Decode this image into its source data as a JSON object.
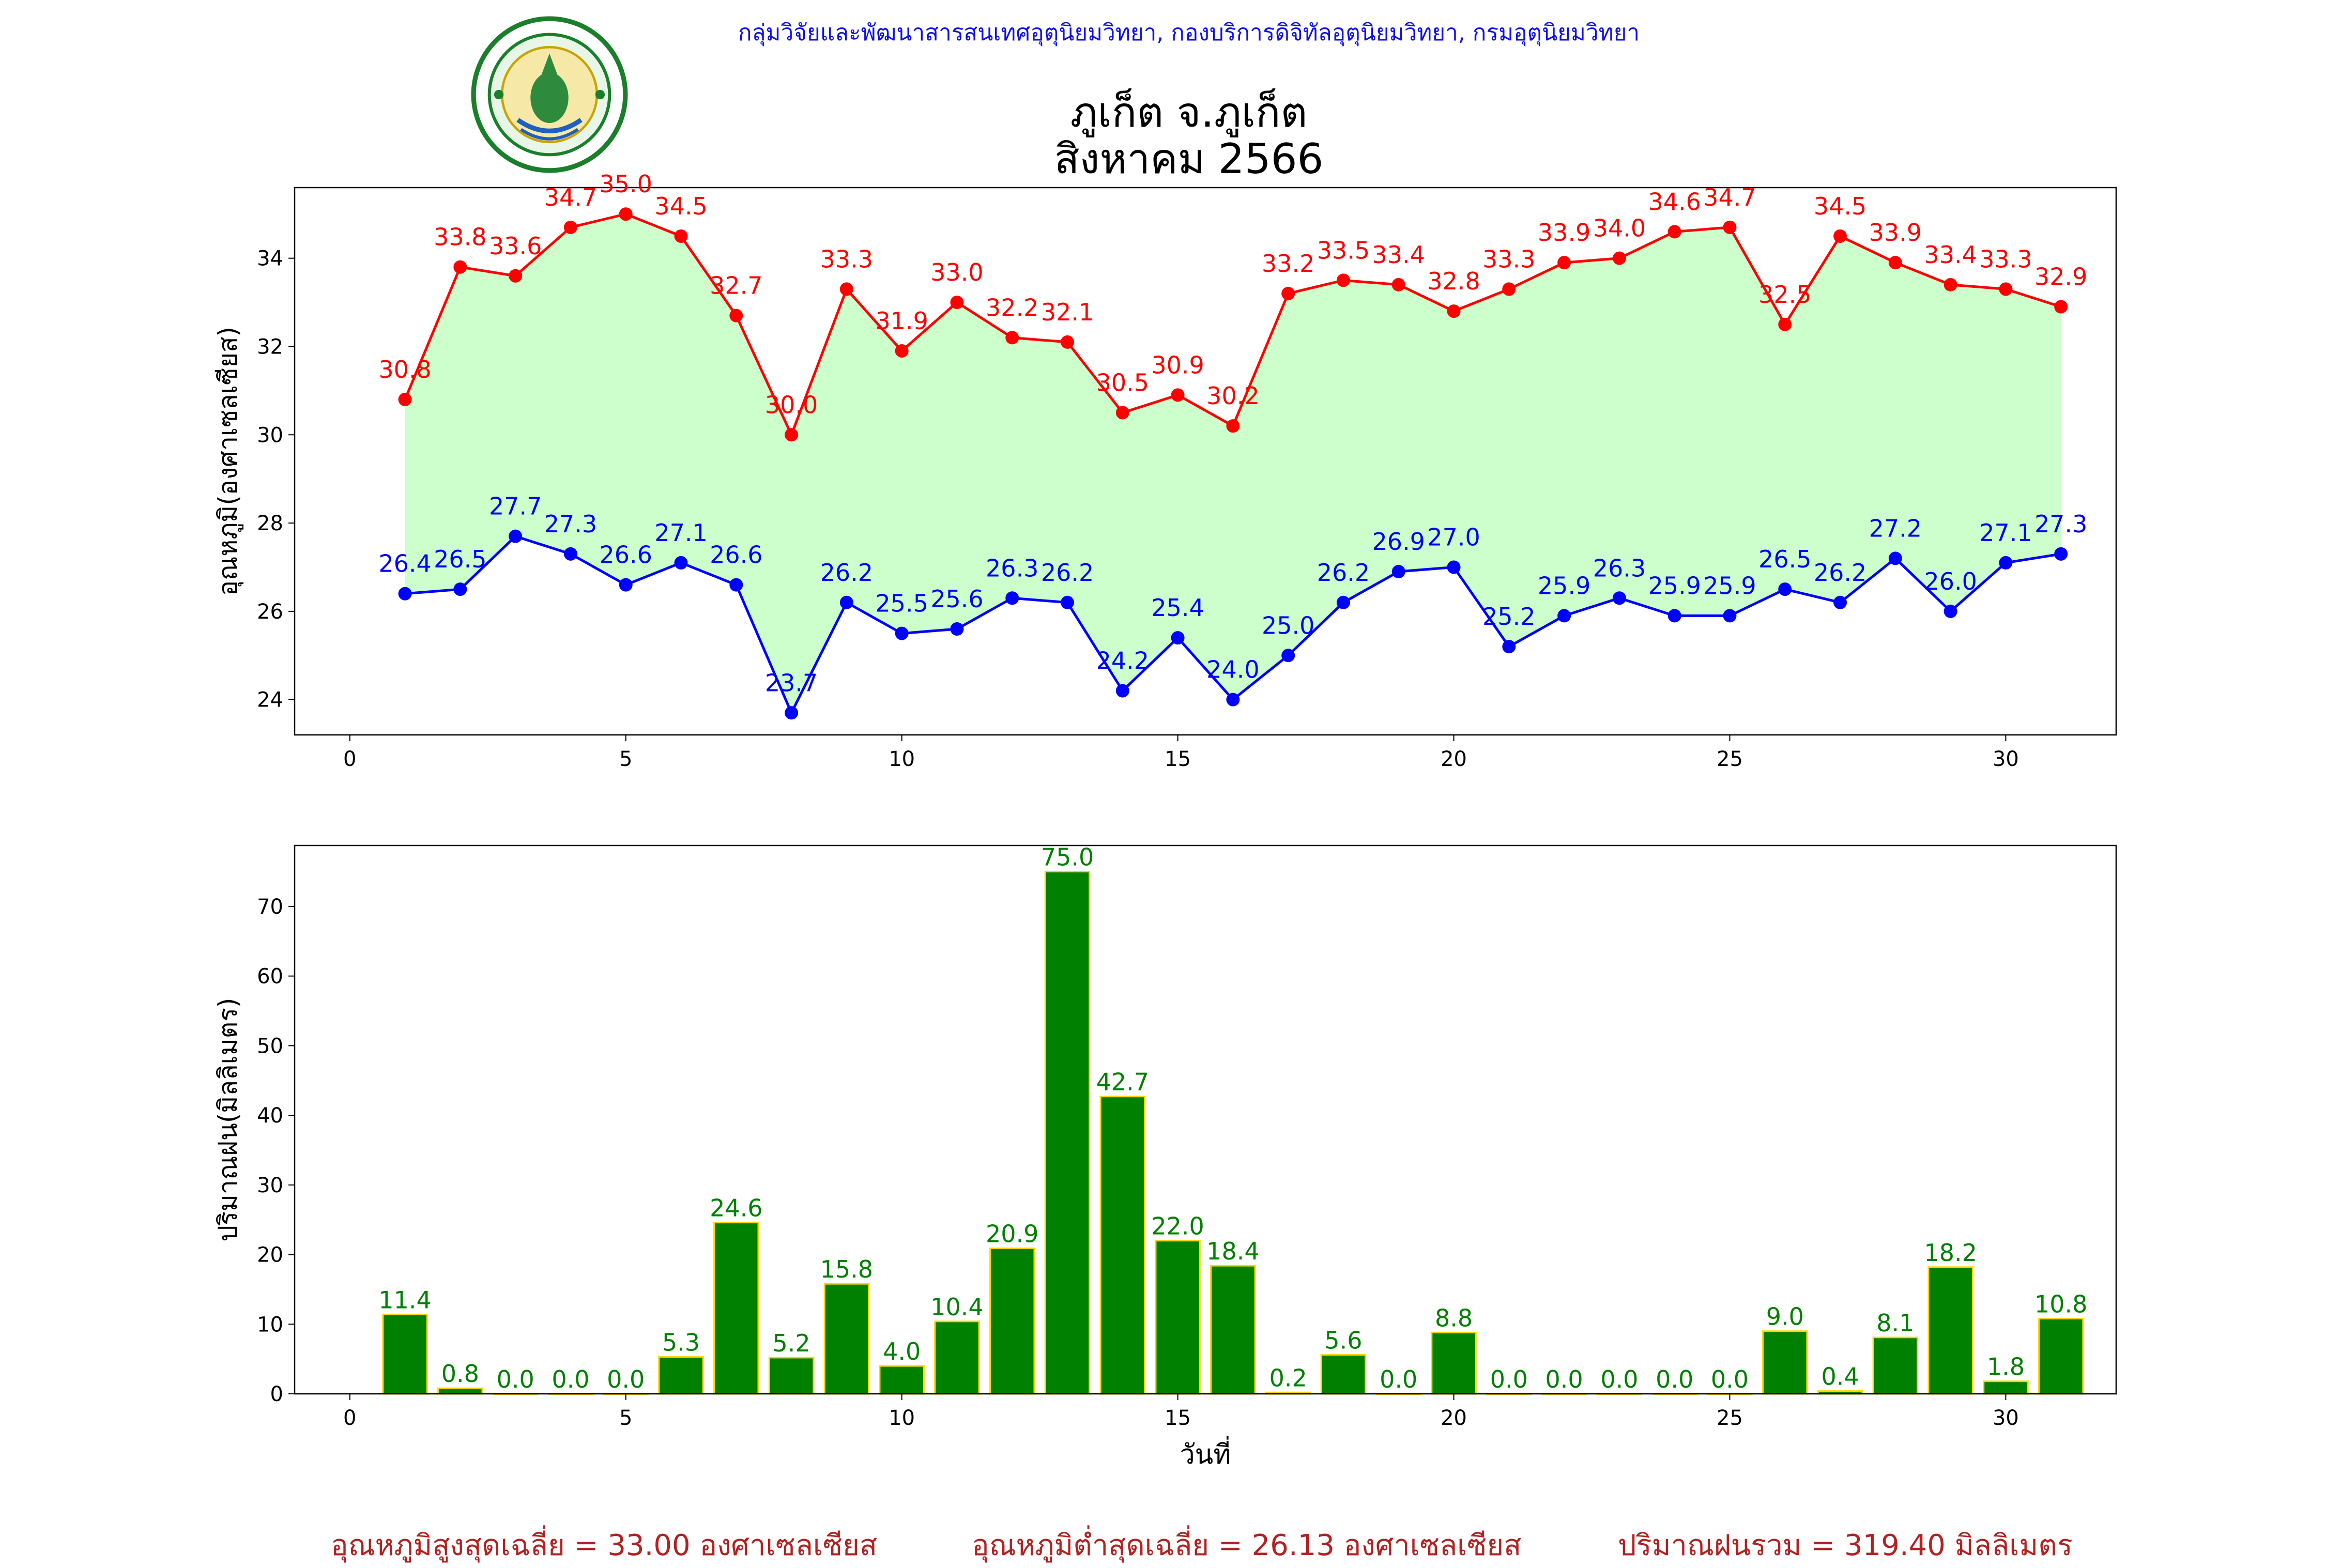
{
  "header": {
    "org_line": "กลุ่มวิจัยและพัฒนาสารสนเทศอุตุนิยมวิทยา, กองบริการดิจิทัลอุตุนิยมวิทยา, กรมอุตุนิยมวิทยา",
    "title_line1": "ภูเก็ต จ.ภูเก็ต",
    "title_line2": "สิงหาคม 2566",
    "logo_icon": "meteorological-department-seal-icon"
  },
  "chart_data": [
    {
      "type": "line",
      "ylabel": "อุณหภูมิ(องศาเซลเซียส)",
      "xlabel": "",
      "xlim": [
        -1,
        32
      ],
      "ylim": [
        23.2,
        35.6
      ],
      "xticks": [
        0,
        5,
        10,
        15,
        20,
        25,
        30
      ],
      "yticks": [
        24,
        26,
        28,
        30,
        32,
        34
      ],
      "fill_between_series": true,
      "colors": {
        "max": "#ff0000",
        "min": "#0000ff",
        "fill": "#ccffcc"
      },
      "x": [
        1,
        2,
        3,
        4,
        5,
        6,
        7,
        8,
        9,
        10,
        11,
        12,
        13,
        14,
        15,
        16,
        17,
        18,
        19,
        20,
        21,
        22,
        23,
        24,
        25,
        26,
        27,
        28,
        29,
        30,
        31
      ],
      "series": [
        {
          "key": "max",
          "values": [
            30.8,
            33.8,
            33.6,
            34.7,
            35.0,
            34.5,
            32.7,
            30.0,
            33.3,
            31.9,
            33.0,
            32.2,
            32.1,
            30.5,
            30.9,
            30.2,
            33.2,
            33.5,
            33.4,
            32.8,
            33.3,
            33.9,
            34.0,
            34.6,
            34.7,
            32.5,
            34.5,
            33.9,
            33.4,
            33.3,
            32.9
          ]
        },
        {
          "key": "min",
          "values": [
            26.4,
            26.5,
            27.7,
            27.3,
            26.6,
            27.1,
            26.6,
            23.7,
            26.2,
            25.5,
            25.6,
            26.3,
            26.2,
            24.2,
            25.4,
            24.0,
            25.0,
            26.2,
            26.9,
            27.0,
            25.2,
            25.9,
            26.3,
            25.9,
            25.9,
            26.5,
            26.2,
            27.2,
            26.0,
            27.1,
            27.3
          ]
        }
      ]
    },
    {
      "type": "bar",
      "ylabel": "ปริมาณฝน(มิลลิเมตร)",
      "xlabel": "วันที่",
      "xlim": [
        -1,
        32
      ],
      "ylim": [
        0,
        78.75
      ],
      "xticks": [
        0,
        5,
        10,
        15,
        20,
        25,
        30
      ],
      "yticks": [
        0,
        10,
        20,
        30,
        40,
        50,
        60,
        70
      ],
      "colors": {
        "bar": "#008000",
        "edge": "#ffd700",
        "label": "#008000"
      },
      "x": [
        1,
        2,
        3,
        4,
        5,
        6,
        7,
        8,
        9,
        10,
        11,
        12,
        13,
        14,
        15,
        16,
        17,
        18,
        19,
        20,
        21,
        22,
        23,
        24,
        25,
        26,
        27,
        28,
        29,
        30,
        31
      ],
      "values": [
        11.4,
        0.8,
        0.0,
        0.0,
        0.0,
        5.3,
        24.6,
        5.2,
        15.8,
        4.0,
        10.4,
        20.9,
        75.0,
        42.7,
        22.0,
        18.4,
        0.2,
        5.6,
        0.0,
        8.8,
        0.0,
        0.0,
        0.0,
        0.0,
        0.0,
        9.0,
        0.4,
        8.1,
        18.2,
        1.8,
        10.8
      ]
    }
  ],
  "summary": {
    "avg_max": "อุณหภูมิสูงสุดเฉลี่ย = 33.00 องศาเซลเซียส",
    "avg_min": "อุณหภูมิต่ำสุดเฉลี่ย = 26.13 องศาเซลเซียส",
    "total_rain": "ปริมาณฝนรวม = 319.40 มิลลิเมตร"
  }
}
